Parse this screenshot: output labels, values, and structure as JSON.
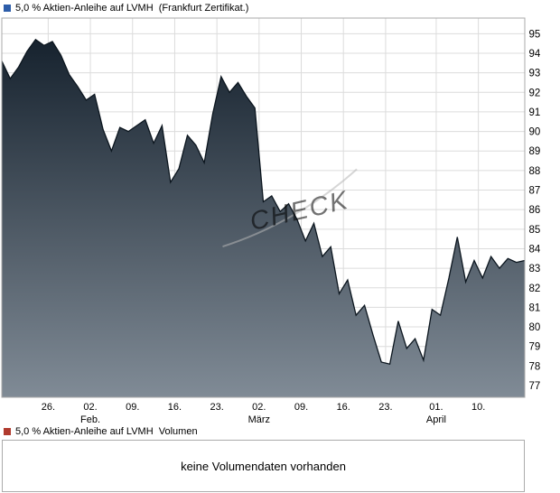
{
  "price_chart": {
    "title": "5,0 % Aktien-Anleihe auf LVMH  (Frankfurt Zertifikat.)",
    "marker_color": "#2d5da9",
    "marker_icon": "blue-square-icon"
  },
  "volume_chart": {
    "title": "5,0 % Aktien-Anleihe auf LVMH  Volumen",
    "marker_color": "#b03a2e",
    "marker_icon": "red-square-icon",
    "message": "keine Volumendaten vorhanden"
  },
  "chart_data": [
    {
      "type": "area",
      "title": "5,0 % Aktien-Anleihe auf LVMH (Frankfurt Zertifikat.)",
      "xlabel": "",
      "ylabel": "",
      "x_unit": "trading days, evenly spaced from late January to mid April",
      "xlim": [
        0,
        62
      ],
      "ylim": [
        76.4,
        95.8
      ],
      "grid": true,
      "watermark": "CHECK",
      "line_color": "#0c161f",
      "fill_gradient_top": "#101c28",
      "fill_gradient_bottom": "#808b96",
      "gridline_color": "#dcdcdc",
      "border_color": "#a8a8a8",
      "y_ticks": [
        77,
        78,
        79,
        80,
        81,
        82,
        83,
        84,
        85,
        86,
        87,
        88,
        89,
        90,
        91,
        92,
        93,
        94,
        95
      ],
      "x_gridlines": [
        {
          "day": 5.5,
          "label": "26.",
          "month": ""
        },
        {
          "day": 10.5,
          "label": "02.",
          "month": "Feb."
        },
        {
          "day": 15.5,
          "label": "09.",
          "month": ""
        },
        {
          "day": 20.5,
          "label": "16.",
          "month": ""
        },
        {
          "day": 25.5,
          "label": "23.",
          "month": ""
        },
        {
          "day": 30.5,
          "label": "02.",
          "month": "März"
        },
        {
          "day": 35.5,
          "label": "09.",
          "month": ""
        },
        {
          "day": 40.5,
          "label": "16.",
          "month": ""
        },
        {
          "day": 45.5,
          "label": "23.",
          "month": ""
        },
        {
          "day": 51.5,
          "label": "01.",
          "month": "April"
        },
        {
          "day": 56.5,
          "label": "10.",
          "month": ""
        }
      ],
      "series": [
        {
          "name": "5,0 % Aktien-Anleihe auf LVMH",
          "values": [
            93.6,
            92.7,
            93.3,
            94.1,
            94.7,
            94.4,
            94.6,
            93.9,
            92.9,
            92.3,
            91.6,
            91.9,
            90.1,
            89.0,
            90.2,
            90.0,
            90.3,
            90.6,
            89.4,
            90.3,
            87.4,
            88.1,
            89.8,
            89.3,
            88.4,
            90.9,
            92.8,
            92.0,
            92.5,
            91.8,
            91.2,
            86.4,
            86.7,
            85.9,
            86.3,
            85.5,
            84.4,
            85.3,
            83.6,
            84.1,
            81.7,
            82.4,
            80.6,
            81.1,
            79.6,
            78.2,
            78.1,
            80.3,
            78.9,
            79.4,
            78.3,
            80.9,
            80.6,
            82.5,
            84.6,
            82.3,
            83.4,
            82.5,
            83.6,
            83.0,
            83.5,
            83.3,
            83.4
          ]
        }
      ]
    },
    {
      "type": "bar",
      "title": "5,0 % Aktien-Anleihe auf LVMH  Volumen",
      "message": "keine Volumendaten vorhanden",
      "categories": [],
      "values": []
    }
  ]
}
